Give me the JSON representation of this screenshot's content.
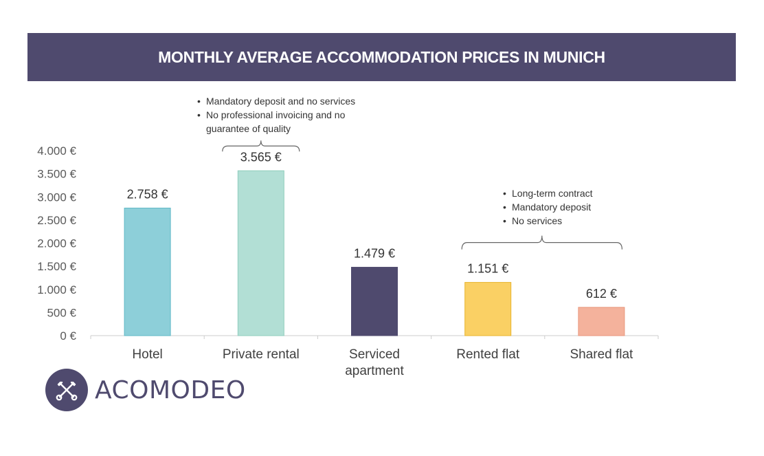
{
  "header": {
    "title": "MONTHLY AVERAGE ACCOMMODATION PRICES IN MUNICH"
  },
  "chart_data": {
    "type": "bar",
    "title": "MONTHLY AVERAGE ACCOMMODATION PRICES IN MUNICH",
    "xlabel": "",
    "ylabel": "",
    "ylim": [
      0,
      4000
    ],
    "yticks": [
      0,
      500,
      1000,
      1500,
      2000,
      2500,
      3000,
      3500,
      4000
    ],
    "ytick_labels": [
      "0 €",
      "500 €",
      "1.000 €",
      "1.500 €",
      "2.000 €",
      "2.500 €",
      "3.000 €",
      "3.500 €",
      "4.000 €"
    ],
    "grid": false,
    "categories": [
      [
        "Hotel"
      ],
      [
        "Private rental"
      ],
      [
        "Serviced",
        "apartment"
      ],
      [
        "Rented flat"
      ],
      [
        "Shared flat"
      ]
    ],
    "values": [
      2758,
      3565,
      1479,
      1151,
      612
    ],
    "value_labels": [
      "2.758 €",
      "3.565 €",
      "1.479 €",
      "1.151 €",
      "612 €"
    ],
    "colors": [
      "#8dcfd9",
      "#b2dfd5",
      "#4f4a6e",
      "#fad064",
      "#f4b29c"
    ],
    "stroke_colors": [
      "#5fb8c6",
      "#8fcdbd",
      "#4f4a6e",
      "#e8b32d",
      "#e8967c"
    ],
    "axis_color": "#cccccc",
    "annotations": [
      {
        "bracket_over": [
          1,
          1
        ],
        "lines": [
          "Mandatory deposit and no services",
          "No professional invoicing and no guarantee of quality"
        ]
      },
      {
        "bracket_over": [
          3,
          4
        ],
        "lines": [
          "Long-term contract",
          "Mandatory deposit",
          "No services"
        ]
      }
    ]
  },
  "notes": {
    "private_rental": [
      "Mandatory deposit and no services",
      "No professional invoicing and no guarantee of quality"
    ],
    "flats": [
      "Long-term contract",
      "Mandatory deposit",
      "No services"
    ]
  },
  "logo": {
    "wordmark": "ACOMODEO",
    "icon": "crossed-keys-icon"
  }
}
